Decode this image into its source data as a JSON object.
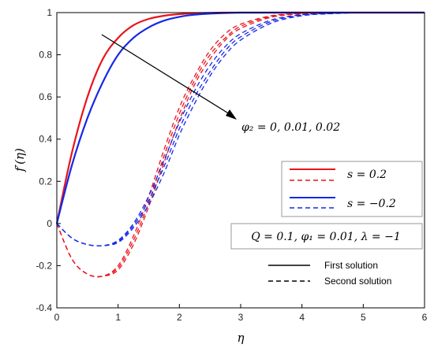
{
  "chart_data": {
    "type": "line",
    "xlabel": "η",
    "ylabel": "f′(η)",
    "xlim": [
      0,
      6
    ],
    "ylim": [
      -0.4,
      1
    ],
    "xticks": [
      0,
      1,
      2,
      3,
      4,
      5,
      6
    ],
    "yticks": [
      -0.4,
      -0.2,
      0,
      0.2,
      0.4,
      0.6,
      0.8,
      1
    ],
    "xtick_labels": [
      "0",
      "1",
      "2",
      "3",
      "4",
      "5",
      "6"
    ],
    "ytick_labels": [
      "-0.4",
      "-0.2",
      "0",
      "0.2",
      "0.4",
      "0.6",
      "0.8",
      "1"
    ],
    "grid": false,
    "annotation": "φ₂ = 0, 0.01, 0.02",
    "parameter_box": "Q = 0.1, φ₁ = 0.01, λ = −1",
    "colors": {
      "s_pos": "#e8141c",
      "s_neg": "#1428e8",
      "black": "#000000"
    },
    "legend_color": [
      {
        "label": "s = 0.2",
        "color": "#e8141c"
      },
      {
        "label": "s = −0.2",
        "color": "#1428e8"
      }
    ],
    "legend_style": [
      {
        "label": "First solution",
        "dash": "solid"
      },
      {
        "label": "Second solution",
        "dash": "dashed"
      }
    ],
    "x_samples": [
      0,
      0.25,
      0.5,
      0.75,
      1,
      1.25,
      1.5,
      1.75,
      2,
      2.25,
      2.5,
      2.75,
      3,
      3.5,
      4,
      4.5,
      5,
      5.5,
      6
    ],
    "series": [
      {
        "color": "#e8141c",
        "dash": "solid",
        "values": [
          0,
          0.34,
          0.6,
          0.78,
          0.88,
          0.94,
          0.97,
          0.985,
          0.993,
          0.997,
          0.999,
          1,
          1,
          1,
          1,
          1,
          1,
          1,
          1
        ]
      },
      {
        "color": "#1428e8",
        "dash": "solid",
        "values": [
          0,
          0.28,
          0.5,
          0.67,
          0.8,
          0.88,
          0.93,
          0.962,
          0.98,
          0.99,
          0.995,
          0.998,
          1,
          1,
          1,
          1,
          1,
          1,
          1
        ]
      },
      {
        "color": "#e8141c",
        "dash": "dashed",
        "values": [
          0,
          -0.17,
          -0.24,
          -0.25,
          -0.2,
          -0.06,
          0.13,
          0.35,
          0.55,
          0.7,
          0.82,
          0.9,
          0.945,
          0.985,
          0.996,
          0.999,
          1,
          1,
          1
        ]
      },
      {
        "color": "#e8141c",
        "dash": "dashed",
        "values": [
          0,
          -0.17,
          -0.24,
          -0.25,
          -0.21,
          -0.08,
          0.1,
          0.32,
          0.52,
          0.68,
          0.8,
          0.88,
          0.935,
          0.982,
          0.995,
          0.999,
          1,
          1,
          1
        ]
      },
      {
        "color": "#e8141c",
        "dash": "dashed",
        "values": [
          0,
          -0.17,
          -0.24,
          -0.25,
          -0.22,
          -0.1,
          0.08,
          0.29,
          0.49,
          0.66,
          0.78,
          0.87,
          0.925,
          0.978,
          0.994,
          0.998,
          1,
          1,
          1
        ]
      },
      {
        "color": "#1428e8",
        "dash": "dashed",
        "values": [
          0,
          -0.07,
          -0.1,
          -0.105,
          -0.08,
          0.0,
          0.13,
          0.3,
          0.48,
          0.63,
          0.75,
          0.84,
          0.9,
          0.965,
          0.99,
          0.997,
          1,
          1,
          1
        ]
      },
      {
        "color": "#1428e8",
        "dash": "dashed",
        "values": [
          0,
          -0.07,
          -0.1,
          -0.105,
          -0.085,
          -0.01,
          0.11,
          0.27,
          0.45,
          0.6,
          0.72,
          0.82,
          0.885,
          0.958,
          0.988,
          0.996,
          1,
          1,
          1
        ]
      },
      {
        "color": "#1428e8",
        "dash": "dashed",
        "values": [
          0,
          -0.07,
          -0.1,
          -0.105,
          -0.09,
          -0.02,
          0.09,
          0.24,
          0.42,
          0.57,
          0.7,
          0.8,
          0.87,
          0.95,
          0.985,
          0.995,
          1,
          1,
          1
        ]
      }
    ]
  }
}
